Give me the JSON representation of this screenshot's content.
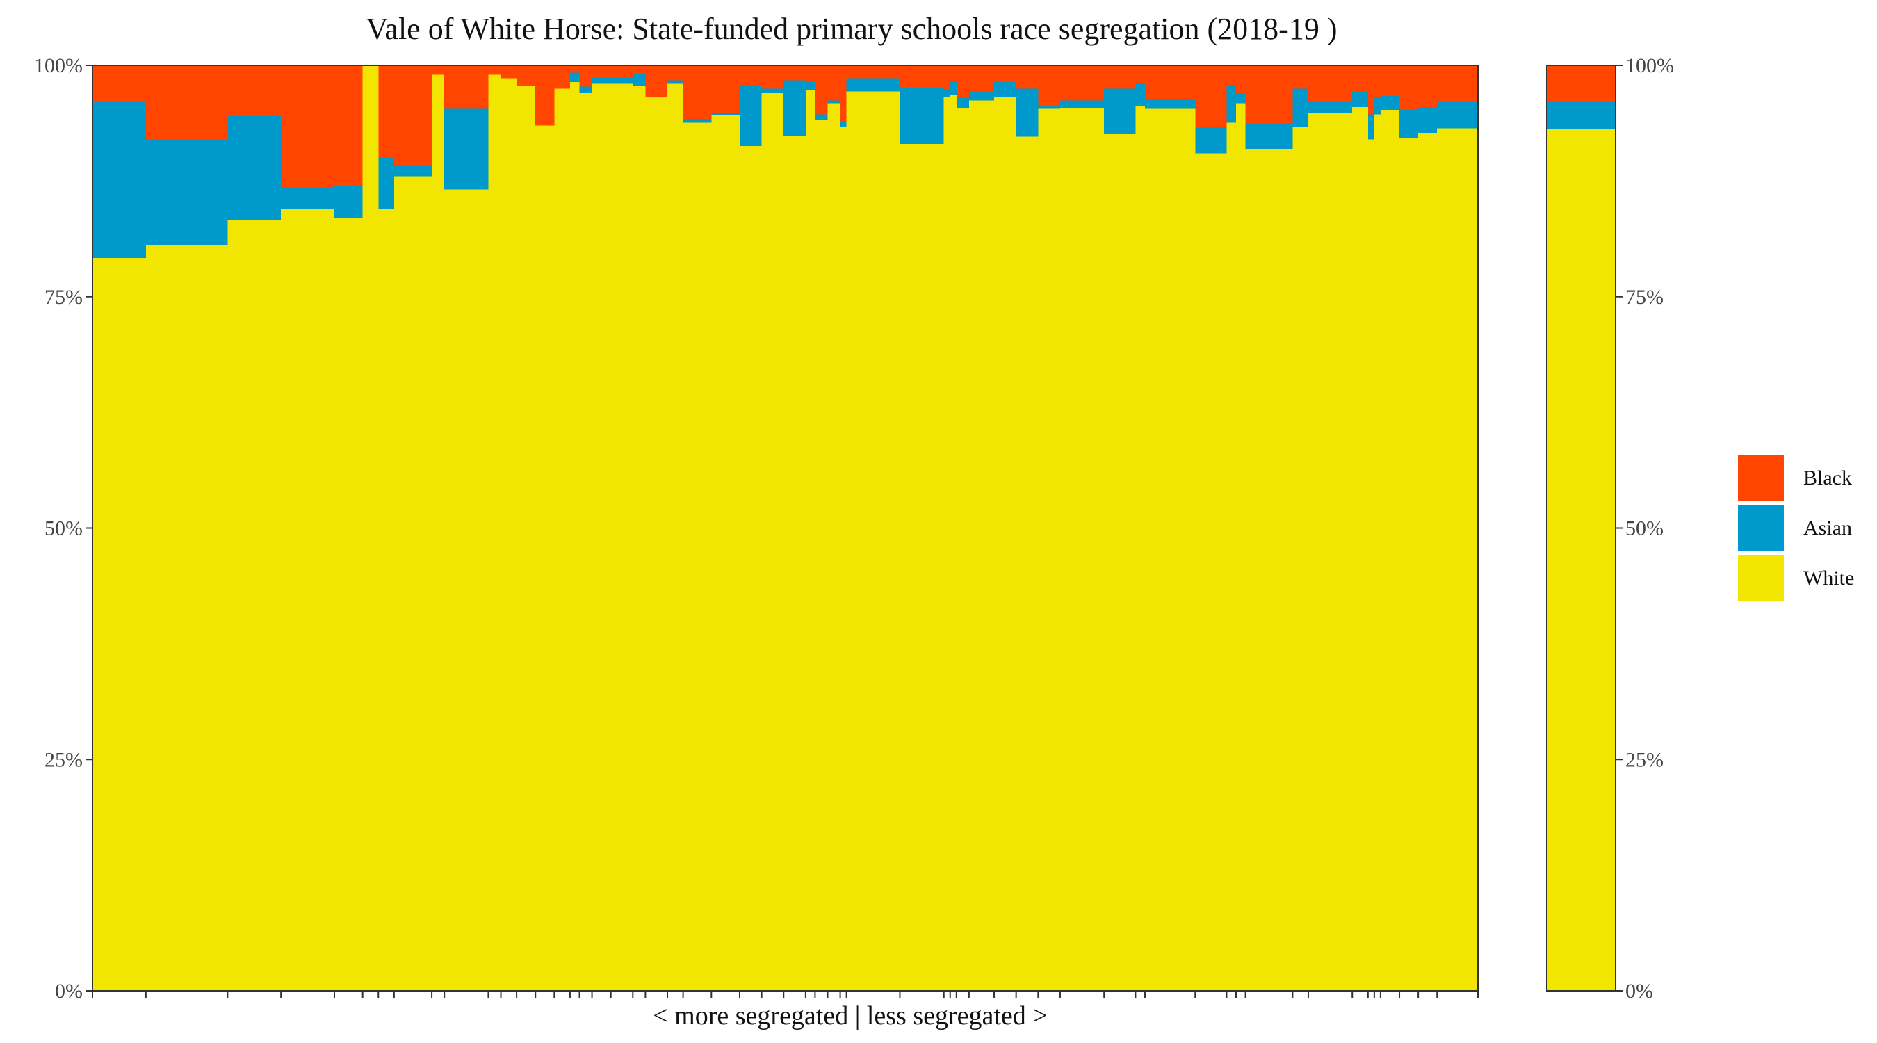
{
  "chart_data": {
    "type": "bar",
    "title": "Vale of White Horse: State-funded primary schools race segregation (2018-19 )",
    "xlabel": "< more segregated | less segregated >",
    "ylabel": "",
    "ylim": [
      0,
      100
    ],
    "y_ticks": [
      "0%",
      "25%",
      "50%",
      "75%",
      "100%"
    ],
    "stack_order_bottom_to_top": [
      "White",
      "Asian",
      "Black"
    ],
    "legend": {
      "placement": "right",
      "entries": [
        {
          "name": "Black",
          "color": "#FF4500"
        },
        {
          "name": "Asian",
          "color": "#0099CC"
        },
        {
          "name": "White",
          "color": "#F2E500"
        }
      ]
    },
    "grid": false,
    "schools": [
      {
        "w": 17,
        "white": 79.2,
        "asian": 16.8
      },
      {
        "w": 26,
        "white": 80.6,
        "asian": 11.3
      },
      {
        "w": 17,
        "white": 83.3,
        "asian": 11.2
      },
      {
        "w": 17,
        "white": 84.5,
        "asian": 2.2
      },
      {
        "w": 9,
        "white": 83.5,
        "asian": 3.5
      },
      {
        "w": 5,
        "white": 100.0,
        "asian": 0.0
      },
      {
        "w": 5,
        "white": 84.5,
        "asian": 5.5
      },
      {
        "w": 12,
        "white": 88.0,
        "asian": 1.2
      },
      {
        "w": 4,
        "white": 99.0,
        "asian": 0.0
      },
      {
        "w": 14,
        "white": 86.6,
        "asian": 8.7
      },
      {
        "w": 4,
        "white": 99.0,
        "asian": 0.0
      },
      {
        "w": 5,
        "white": 98.6,
        "asian": 0.0
      },
      {
        "w": 6,
        "white": 97.8,
        "asian": 0.0
      },
      {
        "w": 6,
        "white": 93.5,
        "asian": 0.0
      },
      {
        "w": 5,
        "white": 97.5,
        "asian": 0.0
      },
      {
        "w": 3,
        "white": 98.2,
        "asian": 1.0
      },
      {
        "w": 4,
        "white": 97.0,
        "asian": 0.7
      },
      {
        "w": 6,
        "white": 98.0,
        "asian": 0.7
      },
      {
        "w": 7,
        "white": 98.0,
        "asian": 0.7
      },
      {
        "w": 4,
        "white": 97.8,
        "asian": 1.3
      },
      {
        "w": 7,
        "white": 96.6,
        "asian": 0.0
      },
      {
        "w": 5,
        "white": 98.0,
        "asian": 0.4
      },
      {
        "w": 9,
        "white": 93.8,
        "asian": 0.4
      },
      {
        "w": 9,
        "white": 94.6,
        "asian": 0.3
      },
      {
        "w": 7,
        "white": 91.3,
        "asian": 6.5
      },
      {
        "w": 7,
        "white": 97.0,
        "asian": 0.5
      },
      {
        "w": 7,
        "white": 92.4,
        "asian": 6.0
      },
      {
        "w": 3,
        "white": 97.3,
        "asian": 0.9
      },
      {
        "w": 4,
        "white": 94.1,
        "asian": 0.6
      },
      {
        "w": 4,
        "white": 95.9,
        "asian": 0.3
      },
      {
        "w": 2,
        "white": 93.4,
        "asian": 0.5
      },
      {
        "w": 17,
        "white": 97.2,
        "asian": 1.4
      },
      {
        "w": 14,
        "white": 91.5,
        "asian": 6.1
      },
      {
        "w": 2,
        "white": 96.6,
        "asian": 0.8
      },
      {
        "w": 2,
        "white": 96.8,
        "asian": 1.5
      },
      {
        "w": 4,
        "white": 95.4,
        "asian": 1.2
      },
      {
        "w": 8,
        "white": 96.2,
        "asian": 1.0
      },
      {
        "w": 7,
        "white": 96.6,
        "asian": 1.6
      },
      {
        "w": 7,
        "white": 92.3,
        "asian": 5.2
      },
      {
        "w": 7,
        "white": 95.3,
        "asian": 0.3
      },
      {
        "w": 14,
        "white": 95.4,
        "asian": 0.8
      },
      {
        "w": 10,
        "white": 92.6,
        "asian": 4.9
      },
      {
        "w": 3,
        "white": 95.6,
        "asian": 2.5
      },
      {
        "w": 16,
        "white": 95.3,
        "asian": 1.0
      },
      {
        "w": 10,
        "white": 90.5,
        "asian": 2.8
      },
      {
        "w": 3,
        "white": 93.8,
        "asian": 4.1
      },
      {
        "w": 3,
        "white": 95.9,
        "asian": 1.1
      },
      {
        "w": 15,
        "white": 91.0,
        "asian": 2.6
      },
      {
        "w": 5,
        "white": 93.4,
        "asian": 4.1
      },
      {
        "w": 14,
        "white": 94.9,
        "asian": 1.1
      },
      {
        "w": 5,
        "white": 95.5,
        "asian": 1.6
      },
      {
        "w": 2,
        "white": 92.0,
        "asian": 2.7
      },
      {
        "w": 2,
        "white": 94.7,
        "asian": 1.9
      },
      {
        "w": 6,
        "white": 95.2,
        "asian": 1.5
      },
      {
        "w": 6,
        "white": 92.2,
        "asian": 3.0
      },
      {
        "w": 6,
        "white": 92.7,
        "asian": 2.8
      },
      {
        "w": 13,
        "white": 93.2,
        "asian": 2.9
      }
    ],
    "total_bar": {
      "white": 93.1,
      "asian": 2.9,
      "black": 4.0
    }
  }
}
